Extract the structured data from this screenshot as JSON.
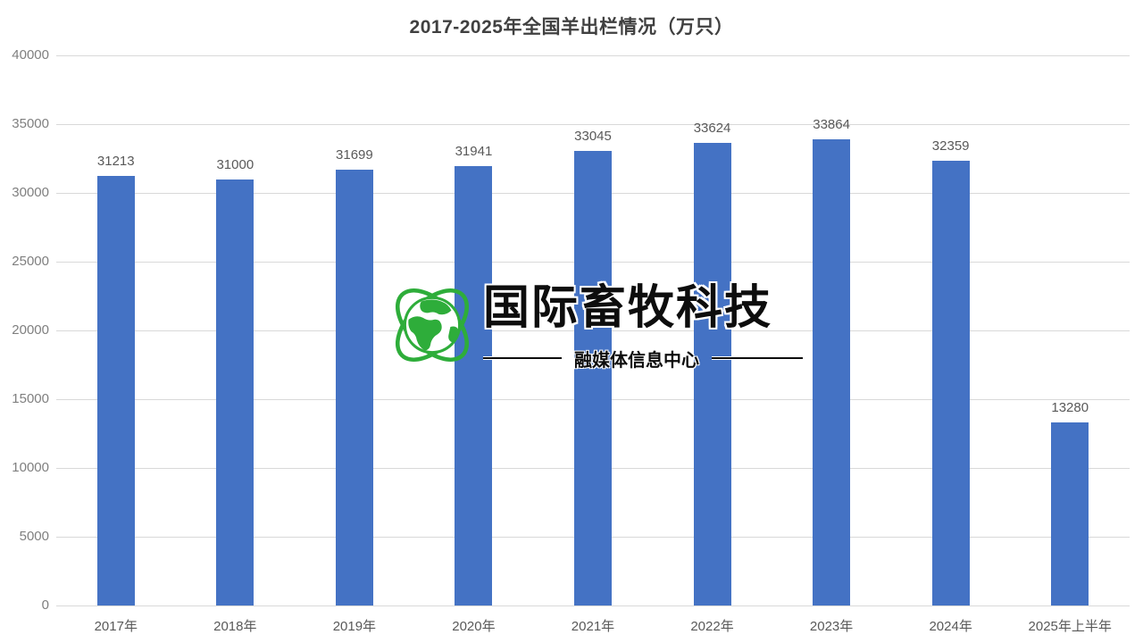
{
  "title": "2017-2025年全国羊出栏情况（万只）",
  "chart_data": {
    "type": "bar",
    "title": "2017-2025年全国羊出栏情况（万只）",
    "categories": [
      "2017年",
      "2018年",
      "2019年",
      "2020年",
      "2021年",
      "2022年",
      "2023年",
      "2024年",
      "2025年上半年"
    ],
    "values": [
      31213,
      31000,
      31699,
      31941,
      33045,
      33624,
      33864,
      32359,
      13280
    ],
    "xlabel": "",
    "ylabel": "",
    "ylim": [
      0,
      40000
    ],
    "ytick_step": 5000,
    "ytick_labels": [
      "0",
      "5000",
      "10000",
      "15000",
      "20000",
      "25000",
      "30000",
      "35000",
      "40000"
    ],
    "grid": true,
    "legend": "none",
    "bar_color": "#4472C4",
    "value_label_color": "#595959",
    "axis_label_color": "#7f7f7f",
    "gridline_color": "#d9d9d9"
  },
  "watermark": {
    "brand": "国际畜牧科技",
    "subtitle": "融媒体信息中心",
    "icon": "globe-orbit-icon",
    "green": "#2EAD3A",
    "text_color": "#0d0d0d"
  }
}
